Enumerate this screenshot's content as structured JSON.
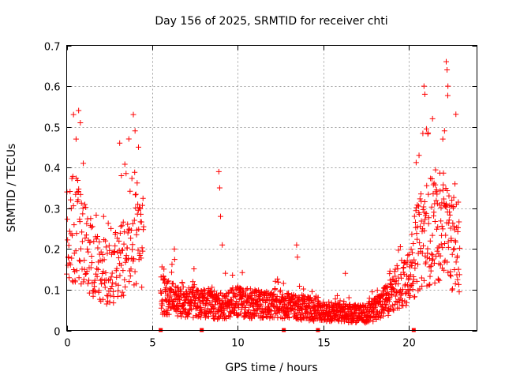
{
  "chart_data": {
    "type": "scatter",
    "title": "Day 156 of 2025, SRMTID for receiver chti",
    "xlabel": "GPS time / hours",
    "ylabel": "SRMTID / TECUs",
    "xlim": [
      0,
      24
    ],
    "ylim": [
      0,
      0.7
    ],
    "xticks": [
      0,
      5,
      10,
      15,
      20
    ],
    "yticks": [
      0,
      0.1,
      0.2,
      0.3,
      0.4,
      0.5,
      0.6,
      0.7
    ],
    "grid": true,
    "marker": "+",
    "color": "#ff0000",
    "gap_markers": [
      5.5,
      7.9,
      12.7,
      14.7,
      20.3
    ],
    "segments": [
      {
        "t0": 0.0,
        "t1": 4.5,
        "step": 0.018,
        "base": [
          [
            0.0,
            0.22
          ],
          [
            0.5,
            0.26
          ],
          [
            1.0,
            0.22
          ],
          [
            1.5,
            0.17
          ],
          [
            2.0,
            0.15
          ],
          [
            2.5,
            0.14
          ],
          [
            3.0,
            0.16
          ],
          [
            3.5,
            0.18
          ],
          [
            4.0,
            0.22
          ],
          [
            4.5,
            0.2
          ]
        ],
        "spread": 0.45
      },
      {
        "t0": 5.5,
        "t1": 19.0,
        "step": 0.011,
        "base": [
          [
            5.5,
            0.09
          ],
          [
            6.0,
            0.08
          ],
          [
            7.0,
            0.07
          ],
          [
            8.0,
            0.065
          ],
          [
            9.0,
            0.06
          ],
          [
            10.0,
            0.07
          ],
          [
            11.0,
            0.065
          ],
          [
            12.0,
            0.06
          ],
          [
            13.0,
            0.06
          ],
          [
            14.0,
            0.055
          ],
          [
            15.0,
            0.045
          ],
          [
            16.0,
            0.045
          ],
          [
            17.0,
            0.04
          ],
          [
            17.5,
            0.04
          ],
          [
            18.0,
            0.05
          ],
          [
            18.5,
            0.065
          ],
          [
            19.0,
            0.085
          ]
        ],
        "spread": 0.42
      },
      {
        "t0": 19.0,
        "t1": 23.0,
        "step": 0.014,
        "base": [
          [
            19.0,
            0.09
          ],
          [
            19.5,
            0.11
          ],
          [
            20.0,
            0.14
          ],
          [
            20.5,
            0.2
          ],
          [
            21.0,
            0.24
          ],
          [
            21.5,
            0.25
          ],
          [
            22.0,
            0.26
          ],
          [
            22.5,
            0.22
          ],
          [
            23.0,
            0.2
          ]
        ],
        "spread": 0.5
      }
    ],
    "spikes": [
      {
        "x": 0.4,
        "y": 0.53
      },
      {
        "x": 0.55,
        "y": 0.47
      },
      {
        "x": 0.7,
        "y": 0.54
      },
      {
        "x": 0.8,
        "y": 0.51
      },
      {
        "x": 3.1,
        "y": 0.46
      },
      {
        "x": 3.2,
        "y": 0.38
      },
      {
        "x": 3.9,
        "y": 0.53
      },
      {
        "x": 4.0,
        "y": 0.49
      },
      {
        "x": 4.2,
        "y": 0.45
      },
      {
        "x": 6.3,
        "y": 0.2
      },
      {
        "x": 8.9,
        "y": 0.39
      },
      {
        "x": 8.95,
        "y": 0.35
      },
      {
        "x": 9.0,
        "y": 0.28
      },
      {
        "x": 9.1,
        "y": 0.21
      },
      {
        "x": 13.45,
        "y": 0.21
      },
      {
        "x": 13.5,
        "y": 0.18
      },
      {
        "x": 16.3,
        "y": 0.14
      },
      {
        "x": 20.9,
        "y": 0.6
      },
      {
        "x": 20.95,
        "y": 0.58
      },
      {
        "x": 21.4,
        "y": 0.52
      },
      {
        "x": 22.0,
        "y": 0.47
      },
      {
        "x": 22.2,
        "y": 0.66
      },
      {
        "x": 22.25,
        "y": 0.64
      },
      {
        "x": 22.3,
        "y": 0.6
      },
      {
        "x": 22.1,
        "y": 0.49
      }
    ]
  }
}
